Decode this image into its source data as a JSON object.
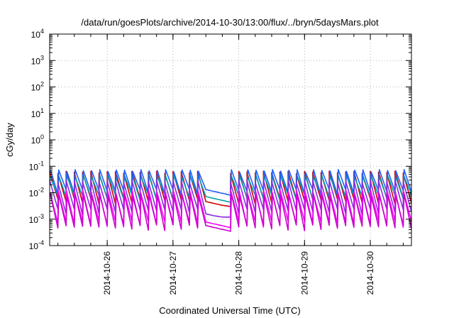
{
  "chart_data": {
    "type": "line",
    "title": "/data/run/goesPlots/archive/2014-10-30/13:00/flux/../bryn/5daysMars.plot",
    "xlabel": "Coordinated Universal Time (UTC)",
    "ylabel": "cGy/day",
    "yscale": "log",
    "ylim": [
      0.0001,
      10000
    ],
    "xlim": [
      "2014-10-25T03:00",
      "2014-10-30T15:00"
    ],
    "grid": true,
    "legend": "none",
    "yticks": [
      {
        "base": "10",
        "exp": "4",
        "value": 10000
      },
      {
        "base": "10",
        "exp": "3",
        "value": 1000
      },
      {
        "base": "10",
        "exp": "2",
        "value": 100
      },
      {
        "base": "10",
        "exp": "1",
        "value": 10
      },
      {
        "base": "10",
        "exp": "0",
        "value": 1
      },
      {
        "base": "10",
        "exp": "-1",
        "value": 0.1
      },
      {
        "base": "10",
        "exp": "-2",
        "value": 0.01
      },
      {
        "base": "10",
        "exp": "-3",
        "value": 0.001
      },
      {
        "base": "10",
        "exp": "-4",
        "value": 0.0001
      }
    ],
    "xticks": [
      {
        "label": "2014-10-26",
        "value": "2014-10-26T00:00"
      },
      {
        "label": "2014-10-27",
        "value": "2014-10-27T00:00"
      },
      {
        "label": "2014-10-28",
        "value": "2014-10-28T00:00"
      },
      {
        "label": "2014-10-29",
        "value": "2014-10-29T00:00"
      },
      {
        "label": "2014-10-30",
        "value": "2014-10-30T00:00"
      }
    ],
    "cycle_hours": 3,
    "gap": {
      "start": "2014-10-27T12:00",
      "end": "2014-10-27T21:00",
      "floor_decay": 0.85
    },
    "series": [
      {
        "color": "#cc0000",
        "peak": 0.065,
        "floor": 0.005
      },
      {
        "color": "#00a0a0",
        "peak": 0.05,
        "floor": 0.007
      },
      {
        "color": "#2060ff",
        "peak": 0.075,
        "floor": 0.011
      },
      {
        "color": "#8a2be2",
        "peak": 0.03,
        "floor": 0.002
      },
      {
        "color": "#ff00ff",
        "peak": 0.012,
        "floor": 0.0007
      },
      {
        "color": "#cc00cc",
        "peak": 0.009,
        "floor": 0.0005
      }
    ]
  }
}
